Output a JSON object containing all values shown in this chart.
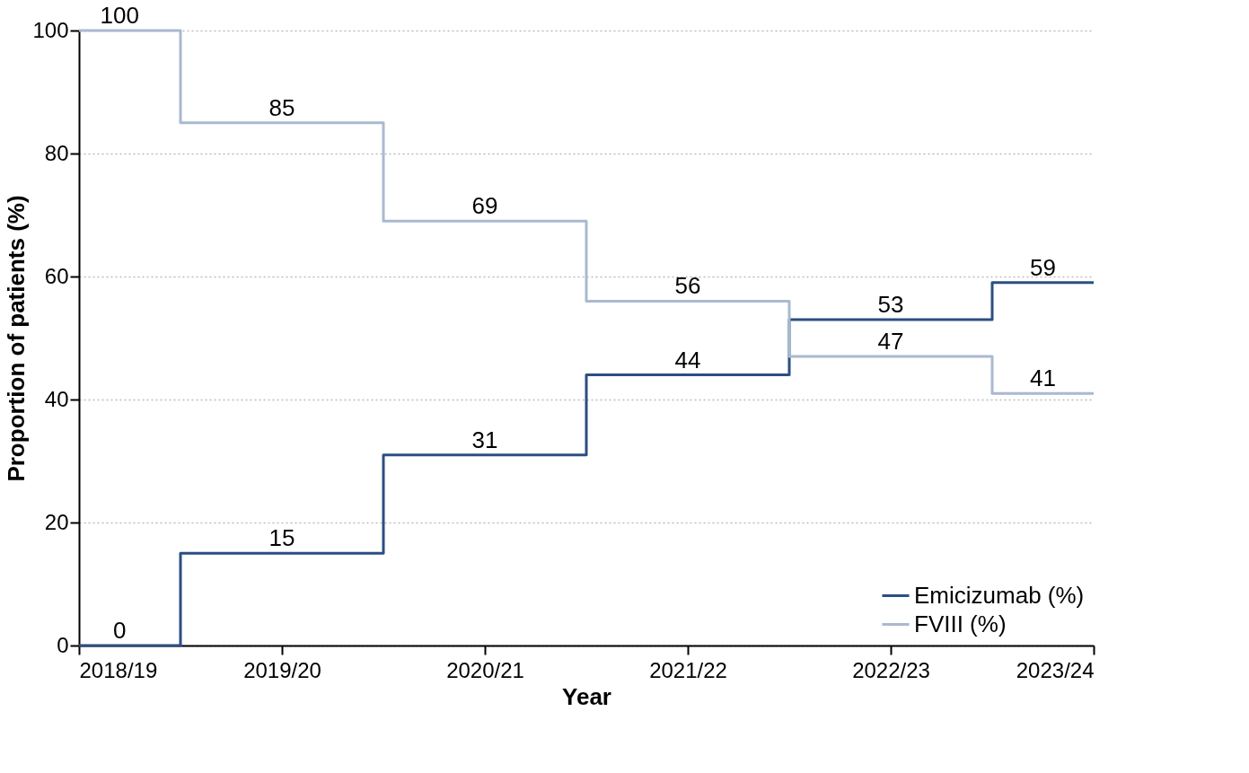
{
  "chart_data": {
    "type": "step",
    "xlabel": "Year",
    "ylabel": "Proportion of patients (%)",
    "categories": [
      "2018/19",
      "2019/20",
      "2020/21",
      "2021/22",
      "2022/23",
      "2023/24"
    ],
    "series": [
      {
        "name": "Emicizumab (%)",
        "color": "#2b4f82",
        "values": [
          0,
          15,
          31,
          44,
          53,
          59
        ]
      },
      {
        "name": "FVIII (%)",
        "color": "#a9b9d0",
        "values": [
          100,
          85,
          69,
          56,
          47,
          41
        ]
      }
    ],
    "ylim": [
      0,
      100
    ],
    "yticks": [
      0,
      20,
      40,
      60,
      80,
      100
    ],
    "grid": "y",
    "legend": "bottom right",
    "data_labels": true,
    "line_style": "solid",
    "marker": "none"
  }
}
